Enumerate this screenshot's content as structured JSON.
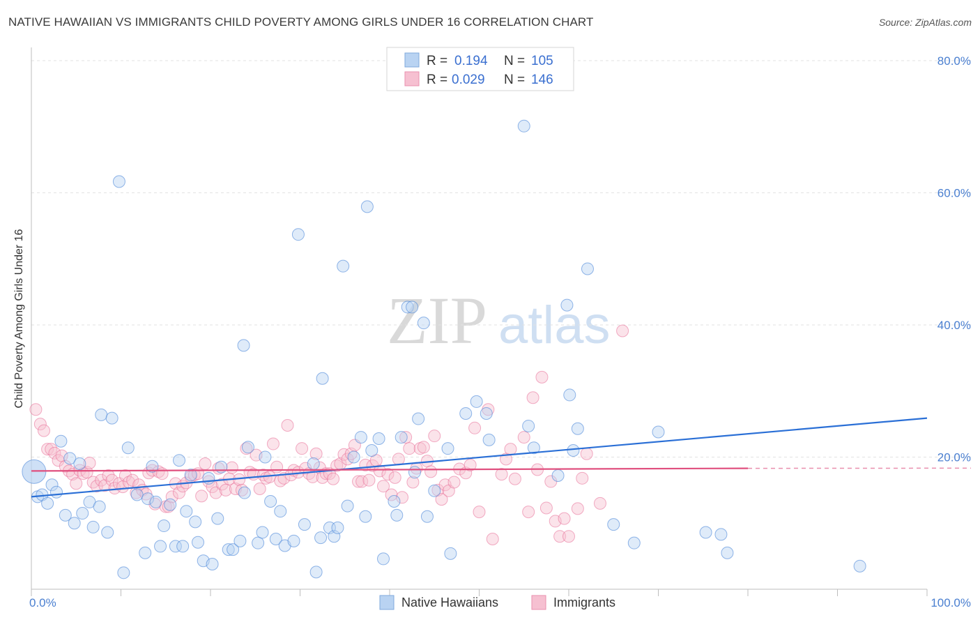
{
  "title": "NATIVE HAWAIIAN VS IMMIGRANTS CHILD POVERTY AMONG GIRLS UNDER 16 CORRELATION CHART",
  "source": "Source: ZipAtlas.com",
  "watermark": {
    "zip": "ZIP",
    "atlas": "atlas"
  },
  "colors": {
    "blue": "#4a86d8",
    "blue_fill": "#b9d3f2",
    "pink": "#e86c95",
    "pink_fill": "#f6c0d1",
    "tick": "#4a7fd0",
    "grid": "#e2e2e2"
  },
  "legend": {
    "rows": [
      {
        "r_label": "R =",
        "r_value": "0.194",
        "n_label": "N =",
        "n_value": "105"
      },
      {
        "r_label": "R =",
        "r_value": "0.029",
        "n_label": "N =",
        "n_value": "146"
      }
    ]
  },
  "bottom_legend": [
    "Native Hawaiians",
    "Immigrants"
  ],
  "chart_data": {
    "type": "scatter",
    "ylabel": "Child Poverty Among Girls Under 16",
    "xlabel": "",
    "xlim": [
      0,
      100
    ],
    "ylim": [
      0,
      85
    ],
    "x_ticks": [
      "0.0%",
      "100.0%"
    ],
    "y_ticks": [
      {
        "value": 20,
        "label": "20.0%"
      },
      {
        "value": 40,
        "label": "40.0%"
      },
      {
        "value": 60,
        "label": "60.0%"
      },
      {
        "value": 80,
        "label": "80.0%"
      }
    ],
    "grid": true,
    "legend_position": "top-center",
    "series": [
      {
        "name": "Native Hawaiians",
        "r": 0.194,
        "n": 105,
        "trend": {
          "x": [
            0,
            100
          ],
          "y": [
            14.0,
            25.9
          ]
        },
        "points": [
          [
            0.3,
            17.8
          ],
          [
            0.7,
            14.0
          ],
          [
            1.2,
            14.3
          ],
          [
            1.8,
            13.0
          ],
          [
            2.3,
            15.8
          ],
          [
            2.8,
            14.7
          ],
          [
            3.3,
            22.4
          ],
          [
            3.8,
            11.2
          ],
          [
            4.3,
            19.8
          ],
          [
            4.8,
            10.0
          ],
          [
            5.4,
            19.0
          ],
          [
            5.7,
            11.5
          ],
          [
            6.5,
            13.2
          ],
          [
            6.9,
            9.4
          ],
          [
            7.6,
            12.5
          ],
          [
            7.8,
            26.4
          ],
          [
            8.5,
            8.6
          ],
          [
            9.0,
            25.9
          ],
          [
            9.8,
            61.7
          ],
          [
            10.3,
            2.5
          ],
          [
            10.8,
            21.4
          ],
          [
            11.8,
            14.3
          ],
          [
            12.7,
            5.5
          ],
          [
            13.0,
            13.7
          ],
          [
            13.5,
            18.6
          ],
          [
            13.9,
            13.2
          ],
          [
            14.4,
            6.5
          ],
          [
            14.8,
            9.6
          ],
          [
            15.5,
            12.8
          ],
          [
            16.1,
            6.5
          ],
          [
            16.5,
            19.5
          ],
          [
            16.9,
            6.5
          ],
          [
            17.3,
            11.8
          ],
          [
            17.8,
            17.3
          ],
          [
            18.3,
            10.2
          ],
          [
            18.6,
            7.1
          ],
          [
            19.2,
            4.3
          ],
          [
            19.8,
            16.8
          ],
          [
            20.2,
            3.8
          ],
          [
            20.8,
            10.7
          ],
          [
            21.2,
            18.5
          ],
          [
            22.0,
            6.0
          ],
          [
            22.5,
            6.0
          ],
          [
            23.3,
            7.3
          ],
          [
            23.8,
            14.6
          ],
          [
            24.2,
            21.5
          ],
          [
            23.7,
            36.9
          ],
          [
            25.3,
            7.0
          ],
          [
            25.8,
            8.6
          ],
          [
            26.1,
            20.0
          ],
          [
            26.7,
            13.3
          ],
          [
            27.3,
            7.6
          ],
          [
            27.8,
            11.8
          ],
          [
            28.3,
            6.6
          ],
          [
            29.3,
            7.3
          ],
          [
            29.8,
            53.7
          ],
          [
            30.5,
            9.8
          ],
          [
            31.5,
            19.0
          ],
          [
            31.8,
            2.6
          ],
          [
            32.3,
            7.8
          ],
          [
            32.5,
            31.9
          ],
          [
            33.3,
            9.3
          ],
          [
            33.8,
            8.0
          ],
          [
            34.2,
            9.3
          ],
          [
            34.8,
            48.9
          ],
          [
            35.3,
            12.6
          ],
          [
            36.0,
            20.0
          ],
          [
            36.8,
            23.0
          ],
          [
            37.3,
            11.0
          ],
          [
            37.5,
            57.9
          ],
          [
            38.0,
            21.0
          ],
          [
            38.8,
            22.8
          ],
          [
            39.3,
            4.6
          ],
          [
            40.5,
            13.3
          ],
          [
            40.8,
            11.2
          ],
          [
            41.3,
            23.0
          ],
          [
            42.0,
            42.7
          ],
          [
            42.5,
            42.7
          ],
          [
            42.8,
            17.7
          ],
          [
            43.2,
            25.8
          ],
          [
            43.8,
            40.3
          ],
          [
            44.2,
            11.0
          ],
          [
            45.0,
            14.9
          ],
          [
            46.5,
            21.3
          ],
          [
            46.8,
            5.4
          ],
          [
            48.5,
            26.6
          ],
          [
            49.7,
            28.4
          ],
          [
            50.8,
            26.6
          ],
          [
            51.1,
            22.6
          ],
          [
            55.0,
            70.1
          ],
          [
            55.5,
            24.7
          ],
          [
            56.1,
            21.4
          ],
          [
            58.8,
            17.2
          ],
          [
            59.8,
            43.0
          ],
          [
            60.1,
            29.4
          ],
          [
            61.0,
            24.3
          ],
          [
            60.5,
            21.0
          ],
          [
            62.1,
            48.5
          ],
          [
            65.0,
            9.8
          ],
          [
            67.3,
            7.0
          ],
          [
            70.0,
            23.8
          ],
          [
            75.3,
            8.6
          ],
          [
            77.0,
            8.3
          ],
          [
            77.7,
            5.5
          ],
          [
            92.5,
            3.5
          ]
        ]
      },
      {
        "name": "Immigrants",
        "r": 0.029,
        "n": 146,
        "trend": {
          "x": [
            0,
            80
          ],
          "y": [
            17.9,
            18.3
          ]
        },
        "points": [
          [
            0.5,
            27.2
          ],
          [
            1.0,
            25.0
          ],
          [
            1.4,
            24.0
          ],
          [
            1.8,
            21.2
          ],
          [
            2.2,
            21.2
          ],
          [
            2.6,
            20.6
          ],
          [
            3.0,
            19.5
          ],
          [
            3.4,
            20.2
          ],
          [
            3.8,
            18.6
          ],
          [
            4.2,
            17.9
          ],
          [
            4.6,
            17.4
          ],
          [
            5.0,
            16.0
          ],
          [
            5.4,
            18.0
          ],
          [
            5.8,
            17.5
          ],
          [
            6.2,
            17.7
          ],
          [
            6.5,
            19.1
          ],
          [
            6.9,
            16.2
          ],
          [
            7.3,
            15.6
          ],
          [
            7.8,
            16.5
          ],
          [
            8.2,
            15.7
          ],
          [
            8.6,
            17.2
          ],
          [
            9.0,
            16.5
          ],
          [
            9.3,
            15.3
          ],
          [
            9.8,
            16.0
          ],
          [
            10.2,
            15.5
          ],
          [
            10.5,
            17.2
          ],
          [
            10.9,
            16.2
          ],
          [
            11.3,
            16.5
          ],
          [
            11.7,
            14.6
          ],
          [
            12.0,
            15.8
          ],
          [
            12.4,
            15.0
          ],
          [
            12.8,
            14.4
          ],
          [
            13.1,
            17.6
          ],
          [
            13.5,
            18.0
          ],
          [
            13.8,
            12.9
          ],
          [
            14.2,
            17.8
          ],
          [
            14.6,
            17.5
          ],
          [
            15.0,
            12.5
          ],
          [
            15.3,
            12.5
          ],
          [
            15.7,
            14.0
          ],
          [
            16.1,
            16.0
          ],
          [
            16.5,
            14.6
          ],
          [
            16.9,
            15.6
          ],
          [
            17.3,
            16.1
          ],
          [
            17.8,
            17.0
          ],
          [
            18.2,
            17.3
          ],
          [
            18.6,
            17.5
          ],
          [
            19.0,
            14.1
          ],
          [
            19.4,
            19.0
          ],
          [
            19.8,
            16.3
          ],
          [
            20.2,
            15.5
          ],
          [
            20.6,
            14.6
          ],
          [
            20.9,
            18.3
          ],
          [
            21.3,
            15.9
          ],
          [
            21.7,
            15.0
          ],
          [
            22.1,
            16.7
          ],
          [
            22.4,
            18.4
          ],
          [
            22.8,
            15.2
          ],
          [
            23.2,
            16.6
          ],
          [
            23.5,
            15.0
          ],
          [
            24.0,
            21.3
          ],
          [
            24.4,
            17.7
          ],
          [
            24.8,
            17.4
          ],
          [
            25.1,
            20.3
          ],
          [
            25.5,
            15.2
          ],
          [
            25.9,
            17.3
          ],
          [
            26.2,
            16.8
          ],
          [
            26.6,
            17.0
          ],
          [
            27.0,
            22.0
          ],
          [
            27.4,
            18.5
          ],
          [
            27.8,
            16.4
          ],
          [
            28.2,
            16.8
          ],
          [
            28.6,
            24.8
          ],
          [
            29.0,
            17.3
          ],
          [
            29.3,
            18.0
          ],
          [
            29.8,
            17.7
          ],
          [
            30.2,
            21.3
          ],
          [
            30.6,
            18.3
          ],
          [
            31.0,
            17.5
          ],
          [
            31.4,
            17.0
          ],
          [
            31.8,
            20.5
          ],
          [
            32.2,
            18.4
          ],
          [
            32.5,
            16.9
          ],
          [
            32.9,
            17.5
          ],
          [
            33.3,
            17.5
          ],
          [
            33.7,
            16.7
          ],
          [
            34.1,
            18.7
          ],
          [
            34.5,
            19.0
          ],
          [
            34.9,
            20.4
          ],
          [
            35.3,
            19.7
          ],
          [
            35.7,
            20.5
          ],
          [
            36.1,
            21.8
          ],
          [
            36.5,
            16.3
          ],
          [
            36.9,
            16.3
          ],
          [
            37.3,
            18.8
          ],
          [
            37.7,
            16.5
          ],
          [
            38.1,
            18.7
          ],
          [
            38.5,
            19.5
          ],
          [
            38.9,
            17.9
          ],
          [
            39.3,
            15.6
          ],
          [
            39.8,
            17.4
          ],
          [
            40.2,
            14.3
          ],
          [
            40.6,
            16.9
          ],
          [
            41.0,
            19.7
          ],
          [
            41.4,
            13.9
          ],
          [
            41.8,
            23.0
          ],
          [
            42.2,
            21.3
          ],
          [
            42.6,
            16.2
          ],
          [
            43.0,
            18.3
          ],
          [
            43.4,
            21.3
          ],
          [
            43.8,
            21.5
          ],
          [
            44.2,
            19.4
          ],
          [
            44.6,
            17.8
          ],
          [
            45.0,
            23.2
          ],
          [
            45.4,
            15.0
          ],
          [
            45.8,
            13.6
          ],
          [
            46.2,
            15.8
          ],
          [
            46.6,
            14.9
          ],
          [
            47.2,
            16.2
          ],
          [
            47.8,
            18.2
          ],
          [
            48.5,
            17.6
          ],
          [
            49.0,
            18.8
          ],
          [
            49.5,
            24.4
          ],
          [
            50.0,
            11.7
          ],
          [
            51.0,
            27.2
          ],
          [
            51.5,
            7.6
          ],
          [
            52.5,
            17.4
          ],
          [
            53.0,
            19.7
          ],
          [
            53.5,
            21.2
          ],
          [
            54.0,
            16.7
          ],
          [
            55.0,
            23.0
          ],
          [
            55.5,
            11.7
          ],
          [
            56.0,
            29.0
          ],
          [
            56.5,
            18.1
          ],
          [
            57.0,
            32.1
          ],
          [
            57.5,
            12.3
          ],
          [
            58.0,
            16.3
          ],
          [
            58.5,
            10.3
          ],
          [
            59.0,
            8.0
          ],
          [
            59.5,
            10.7
          ],
          [
            60.0,
            8.0
          ],
          [
            61.0,
            12.2
          ],
          [
            61.5,
            16.8
          ],
          [
            62.0,
            20.5
          ],
          [
            63.5,
            13.0
          ],
          [
            66.0,
            39.1
          ]
        ]
      }
    ]
  }
}
